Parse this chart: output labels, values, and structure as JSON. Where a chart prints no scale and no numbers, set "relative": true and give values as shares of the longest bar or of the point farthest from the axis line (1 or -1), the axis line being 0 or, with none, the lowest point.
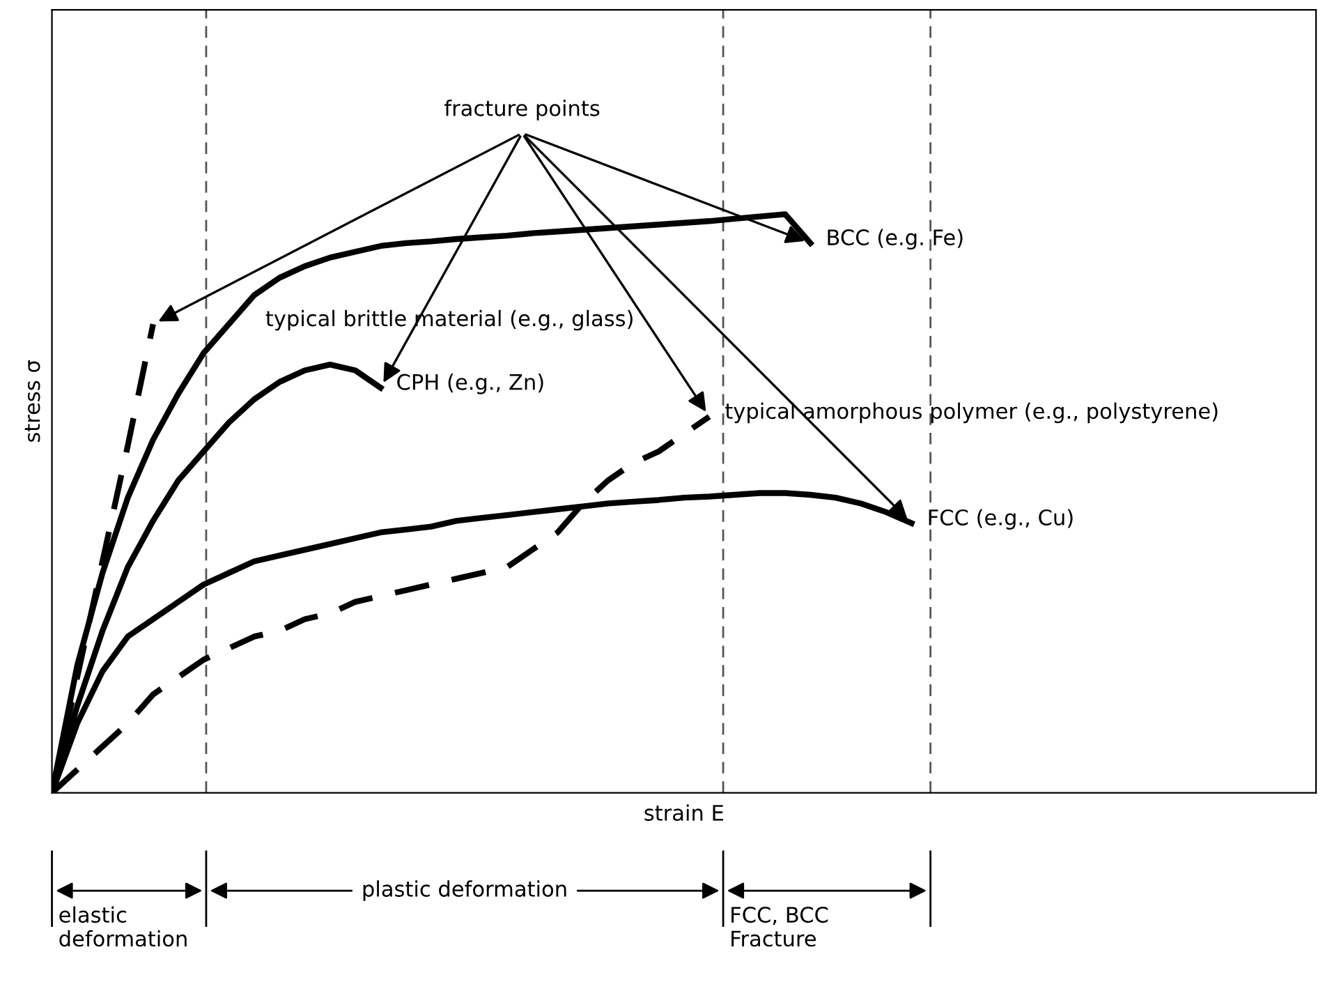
{
  "chart_data": {
    "type": "line",
    "relative": true,
    "xlabel": "strain E",
    "ylabel": "stress σ",
    "legend": "right",
    "categories": [
      null,
      null,
      null,
      null,
      null,
      null,
      null,
      null,
      null,
      null,
      null,
      null,
      null,
      null,
      null,
      null,
      null,
      null,
      null,
      null,
      null,
      null,
      null,
      null,
      null,
      null,
      null,
      null,
      null,
      null,
      null,
      null,
      null,
      null,
      null,
      null,
      null,
      null,
      null,
      null,
      null,
      null,
      null,
      null,
      null,
      null,
      null,
      null,
      null,
      null,
      null
    ],
    "series": [
      {
        "name": "typical brittle material (e.g., glass)",
        "color": "#000000",
        "line_style": "dashed",
        "values": [
          0,
          0.2,
          0.4,
          0.6,
          0.81,
          null,
          null,
          null,
          null,
          null,
          null,
          null,
          null,
          null,
          null,
          null,
          null,
          null,
          null,
          null,
          null,
          null,
          null,
          null,
          null,
          null,
          null,
          null,
          null,
          null,
          null,
          null,
          null,
          null,
          null,
          null,
          null,
          null,
          null,
          null,
          null,
          null,
          null,
          null,
          null,
          null,
          null,
          null,
          null,
          null,
          null
        ]
      },
      {
        "name": "BCC (e.g. Fe)",
        "color": "#000000",
        "values": [
          0,
          0.22,
          0.38,
          0.51,
          0.61,
          0.69,
          0.76,
          0.81,
          0.86,
          0.89,
          0.91,
          0.925,
          0.935,
          0.945,
          0.95,
          0.953,
          0.957,
          0.96,
          0.963,
          0.967,
          0.97,
          0.973,
          0.976,
          0.979,
          0.982,
          0.985,
          0.988,
          0.992,
          0.996,
          1.0,
          0.95,
          null,
          null,
          null,
          null,
          null,
          null,
          null,
          null,
          null,
          null,
          null,
          null,
          null,
          null,
          null,
          null,
          null,
          null,
          null,
          null
        ]
      },
      {
        "name": "CPH (e.g., Zn)",
        "color": "#000000",
        "values": [
          0,
          0.15,
          0.28,
          0.39,
          0.47,
          0.54,
          0.59,
          0.64,
          0.68,
          0.71,
          0.73,
          0.74,
          0.73,
          0.7,
          null,
          null,
          null,
          null,
          null,
          null,
          null,
          null,
          null,
          null,
          null,
          null,
          null,
          null,
          null,
          null,
          null,
          null,
          null,
          null,
          null,
          null,
          null,
          null,
          null,
          null,
          null,
          null,
          null,
          null,
          null,
          null,
          null,
          null,
          null,
          null,
          null
        ]
      },
      {
        "name": "typical amorphous polymer (e.g., polystyrene)",
        "color": "#000000",
        "line_style": "dashed",
        "values": [
          0,
          0.04,
          0.08,
          0.12,
          0.17,
          0.2,
          0.23,
          0.25,
          0.27,
          0.28,
          0.3,
          0.31,
          0.33,
          0.34,
          0.35,
          0.36,
          0.37,
          0.38,
          0.39,
          0.42,
          0.45,
          0.5,
          0.54,
          0.57,
          0.59,
          0.62,
          0.65,
          null,
          null,
          null,
          null,
          null,
          null,
          null,
          null,
          null,
          null,
          null,
          null,
          null,
          null,
          null,
          null,
          null,
          null,
          null,
          null,
          null,
          null,
          null,
          null
        ]
      },
      {
        "name": "FCC (e.g., Cu)",
        "color": "#000000",
        "values": [
          0,
          0.12,
          0.21,
          0.27,
          0.3,
          0.33,
          0.36,
          0.38,
          0.4,
          0.41,
          0.42,
          0.43,
          0.44,
          0.45,
          0.455,
          0.46,
          0.47,
          0.475,
          0.48,
          0.485,
          0.49,
          0.495,
          0.5,
          0.503,
          0.506,
          0.51,
          0.512,
          0.515,
          0.518,
          0.518,
          0.515,
          0.51,
          0.5,
          0.485,
          0.466,
          null,
          null,
          null,
          null,
          null,
          null,
          null,
          null,
          null,
          null,
          null,
          null,
          null,
          null,
          null,
          null
        ]
      }
    ],
    "annotations": [
      "fracture points",
      "elastic deformation",
      "plastic deformation",
      "FCC, BCC Fracture"
    ]
  }
}
